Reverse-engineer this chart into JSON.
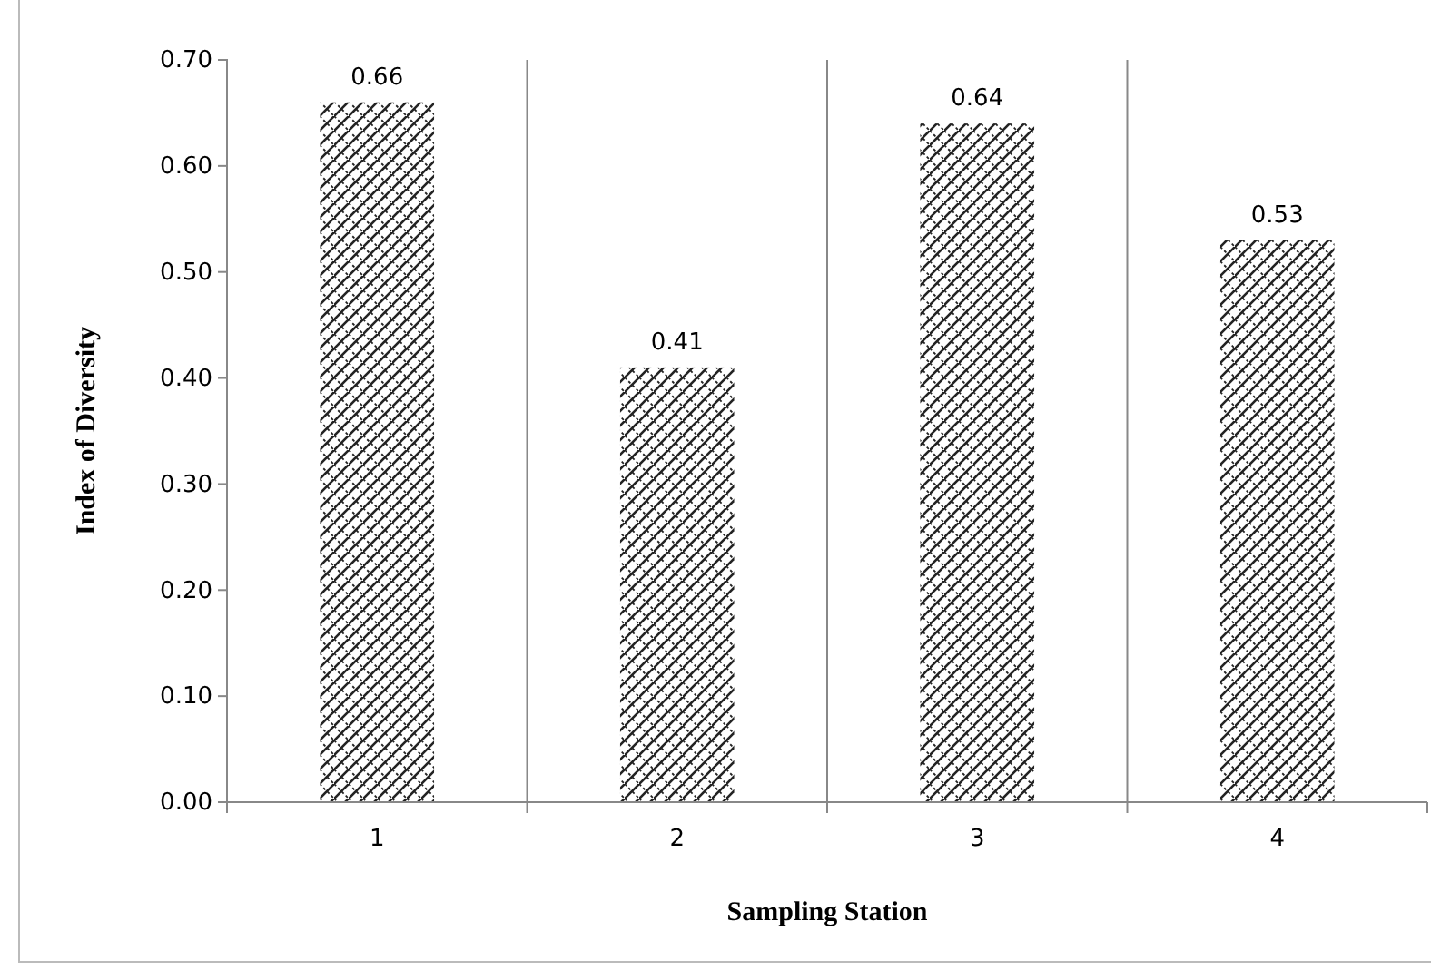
{
  "chart_data": {
    "type": "bar",
    "xlabel": "Sampling Station",
    "ylabel": "Index of Diversity",
    "categories": [
      "1",
      "2",
      "3",
      "4"
    ],
    "values": [
      0.66,
      0.41,
      0.64,
      0.53
    ],
    "color": "#222222",
    "data_labels": true,
    "ylim": [
      0,
      0.7
    ],
    "yticks": [
      {
        "value": 0,
        "label": "0.00"
      },
      {
        "value": 0.1,
        "label": "0.10"
      },
      {
        "value": 0.2,
        "label": "0.20"
      },
      {
        "value": 0.3,
        "label": "0.30"
      },
      {
        "value": 0.4,
        "label": "0.40"
      },
      {
        "value": 0.5,
        "label": "0.50"
      },
      {
        "value": 0.6,
        "label": "0.60"
      },
      {
        "value": 0.7,
        "label": "0.70"
      }
    ],
    "grid": "x"
  }
}
